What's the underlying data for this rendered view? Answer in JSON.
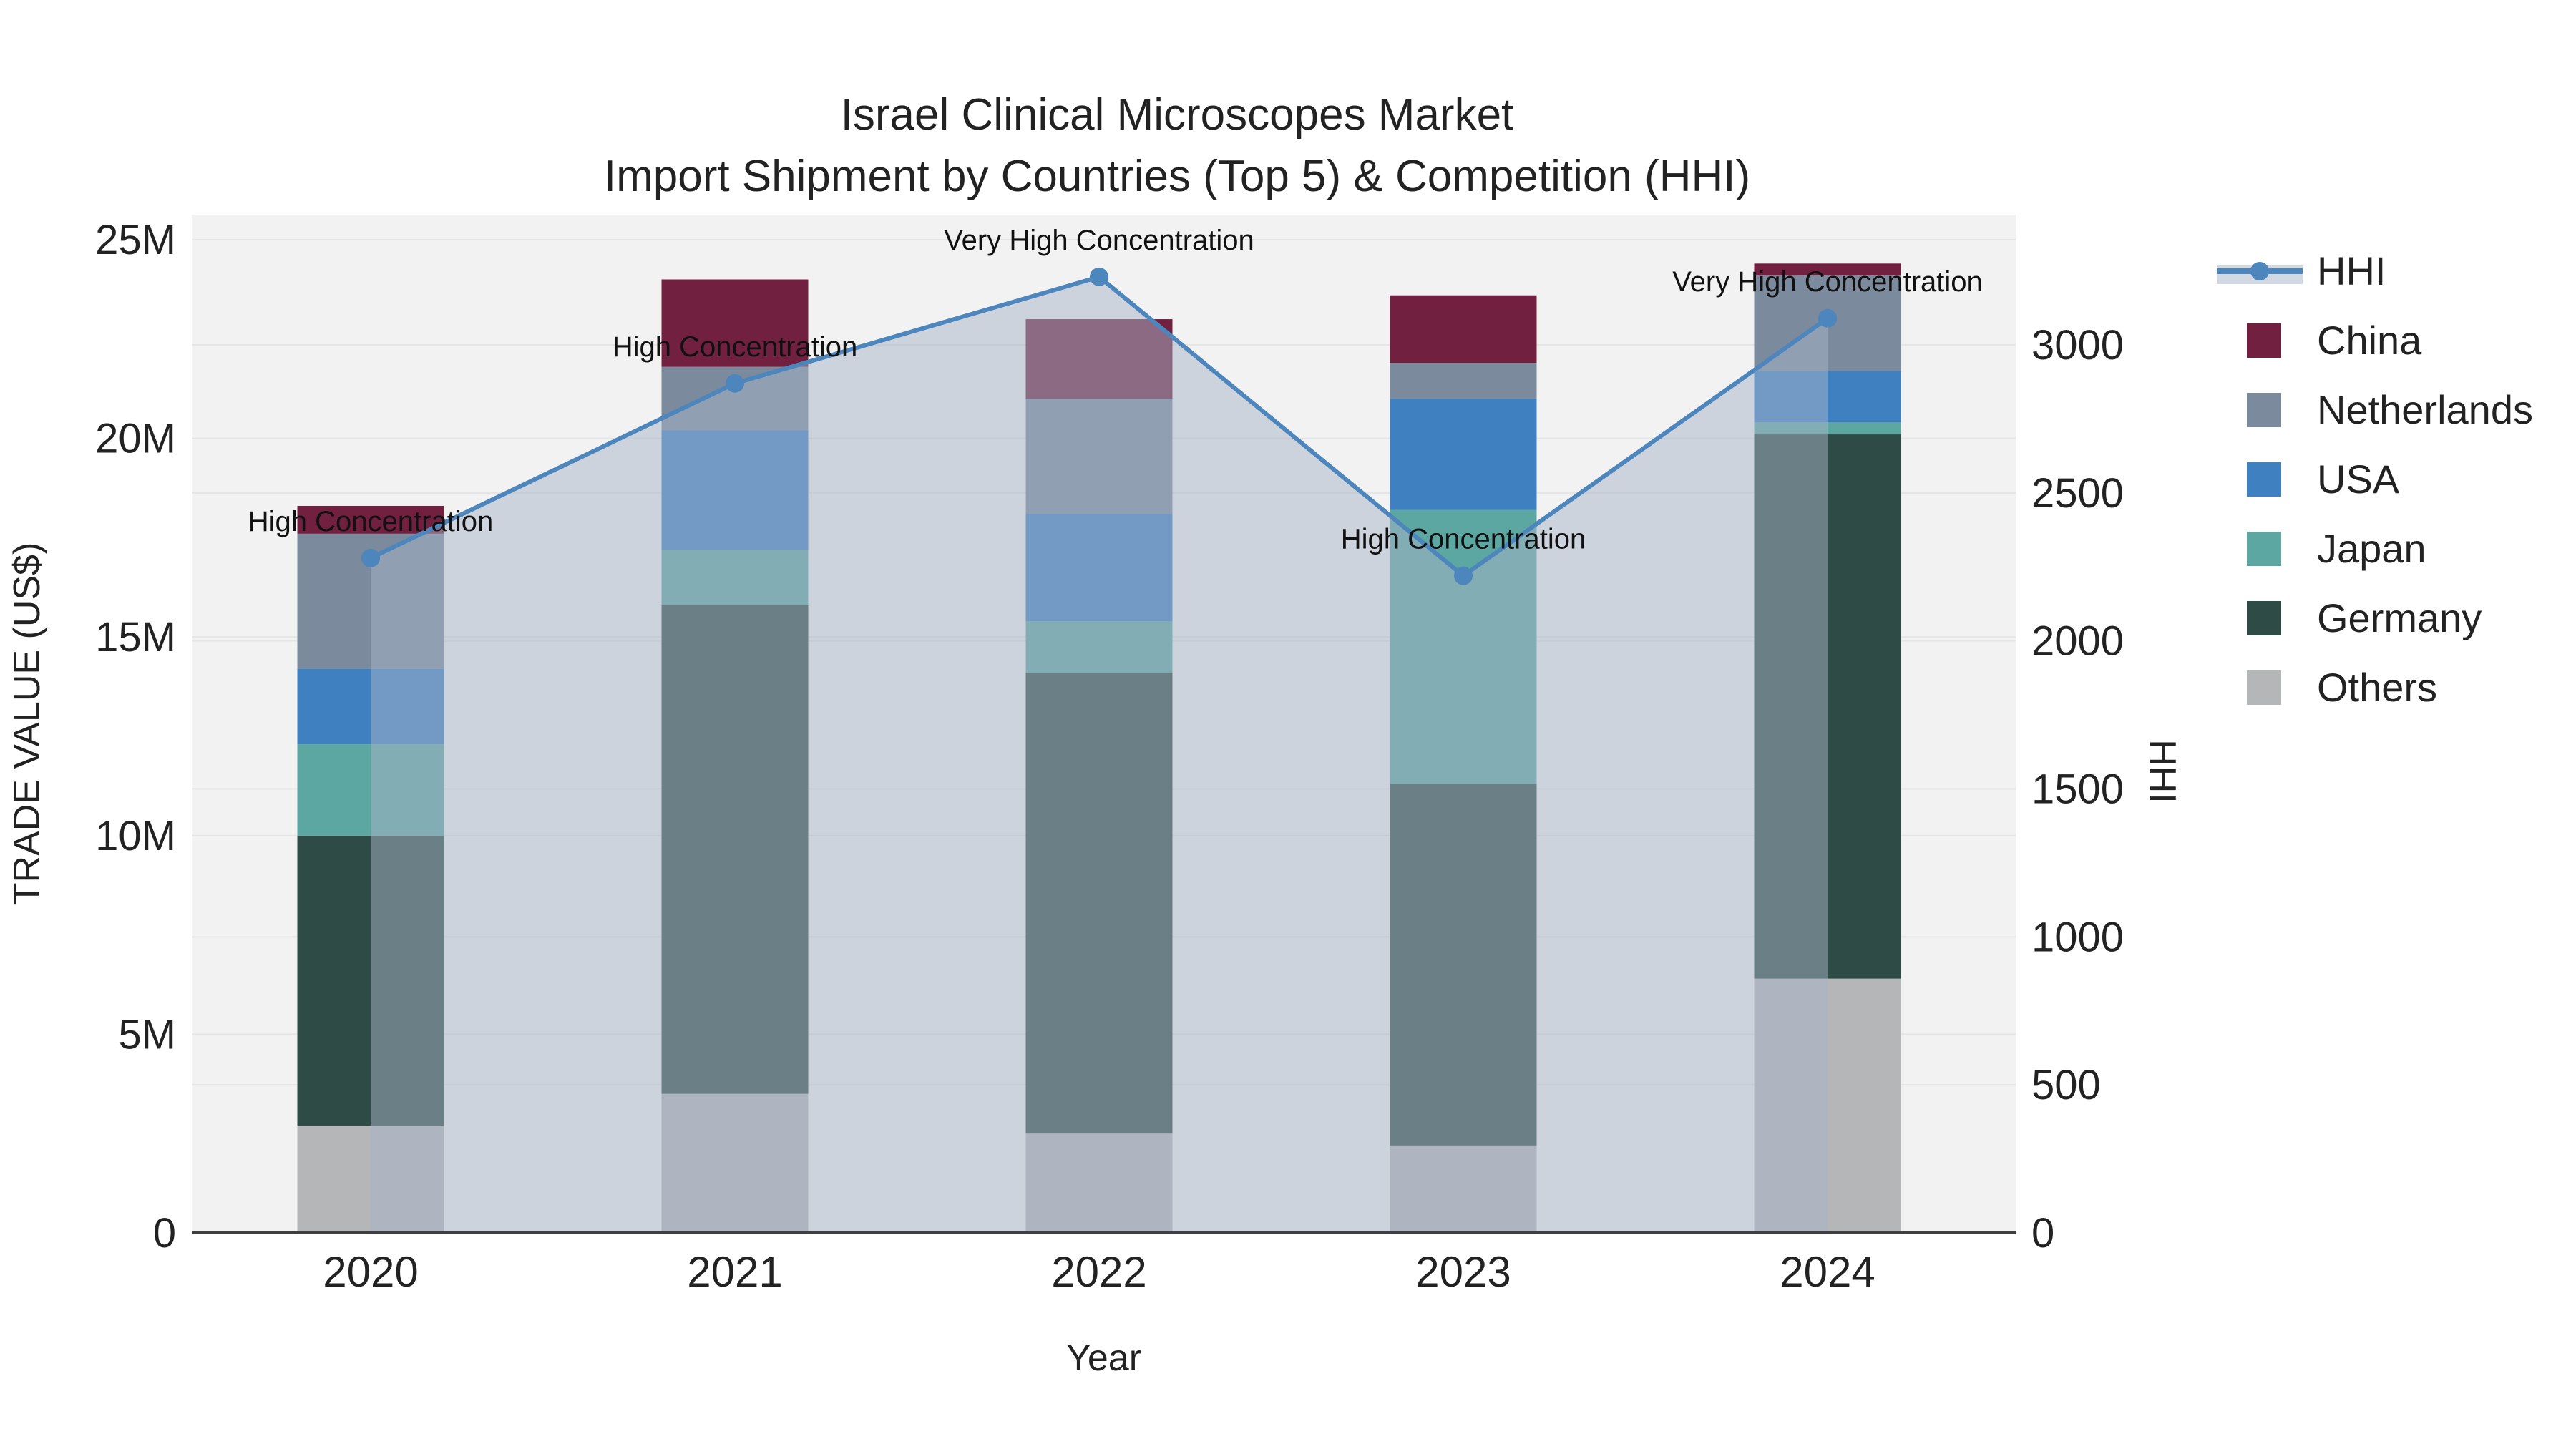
{
  "title": {
    "line1": "Israel Clinical Microscopes Market",
    "line2": "Import Shipment by Countries (Top 5) & Competition (HHI)"
  },
  "chart_data": {
    "type": "combo_stacked_bar_line",
    "categories": [
      "2020",
      "2021",
      "2022",
      "2023",
      "2024"
    ],
    "value_unit": "millions US$",
    "series": [
      {
        "name": "Others",
        "color": "#b4b6b8",
        "values": [
          2.7,
          3.5,
          2.5,
          2.2,
          6.4
        ]
      },
      {
        "name": "Germany",
        "color": "#2f4b46",
        "values": [
          7.3,
          12.3,
          11.6,
          9.1,
          13.7
        ]
      },
      {
        "name": "Japan",
        "color": "#5ca7a1",
        "values": [
          2.3,
          1.4,
          1.3,
          6.9,
          0.3
        ]
      },
      {
        "name": "USA",
        "color": "#3f80c1",
        "values": [
          1.9,
          3.0,
          2.7,
          2.8,
          1.3
        ]
      },
      {
        "name": "Netherlands",
        "color": "#7b8a9c",
        "values": [
          3.4,
          1.6,
          2.9,
          0.9,
          2.4
        ]
      },
      {
        "name": "China",
        "color": "#71203f",
        "values": [
          0.7,
          2.2,
          2.0,
          1.7,
          0.3
        ]
      }
    ],
    "bar_totals": [
      18.3,
      24.0,
      23.0,
      23.6,
      24.4
    ],
    "line": {
      "name": "HHI",
      "color": "#4c86bc",
      "area_fill": "rgba(168,180,200,0.5)",
      "values": [
        2280,
        2870,
        3230,
        2220,
        3090
      ]
    },
    "annotations": [
      "High Concentration",
      "High Concentration",
      "Very High Concentration",
      "High Concentration",
      "Very High Concentration"
    ],
    "left_axis": {
      "title": "TRADE VALUE (US$)",
      "tick_labels": [
        "0",
        "5M",
        "10M",
        "15M",
        "20M",
        "25M"
      ],
      "tick_values": [
        0,
        5,
        10,
        15,
        20,
        25
      ],
      "max": 25
    },
    "right_axis": {
      "title": "HHI",
      "tick_labels": [
        "0",
        "500",
        "1000",
        "1500",
        "2000",
        "2500",
        "3000"
      ],
      "tick_values": [
        0,
        500,
        1000,
        1500,
        2000,
        2500,
        3000
      ],
      "max": 3000
    },
    "x_axis": {
      "title": "Year"
    },
    "grid": true,
    "legend_position": "right"
  },
  "legend": {
    "items": [
      {
        "label": "HHI",
        "type": "line",
        "color": "#4c86bc"
      },
      {
        "label": "China",
        "type": "swatch",
        "color": "#71203f"
      },
      {
        "label": "Netherlands",
        "type": "swatch",
        "color": "#7b8a9c"
      },
      {
        "label": "USA",
        "type": "swatch",
        "color": "#3f80c1"
      },
      {
        "label": "Japan",
        "type": "swatch",
        "color": "#5ca7a1"
      },
      {
        "label": "Germany",
        "type": "swatch",
        "color": "#2f4b46"
      },
      {
        "label": "Others",
        "type": "swatch",
        "color": "#b4b6b8"
      }
    ]
  },
  "colors": {
    "plot_background": "#f2f2f2",
    "gridline": "#e5e5e5",
    "axis_line": "#3f3f3f",
    "text": "#222222",
    "annotation_text": "#111111"
  }
}
